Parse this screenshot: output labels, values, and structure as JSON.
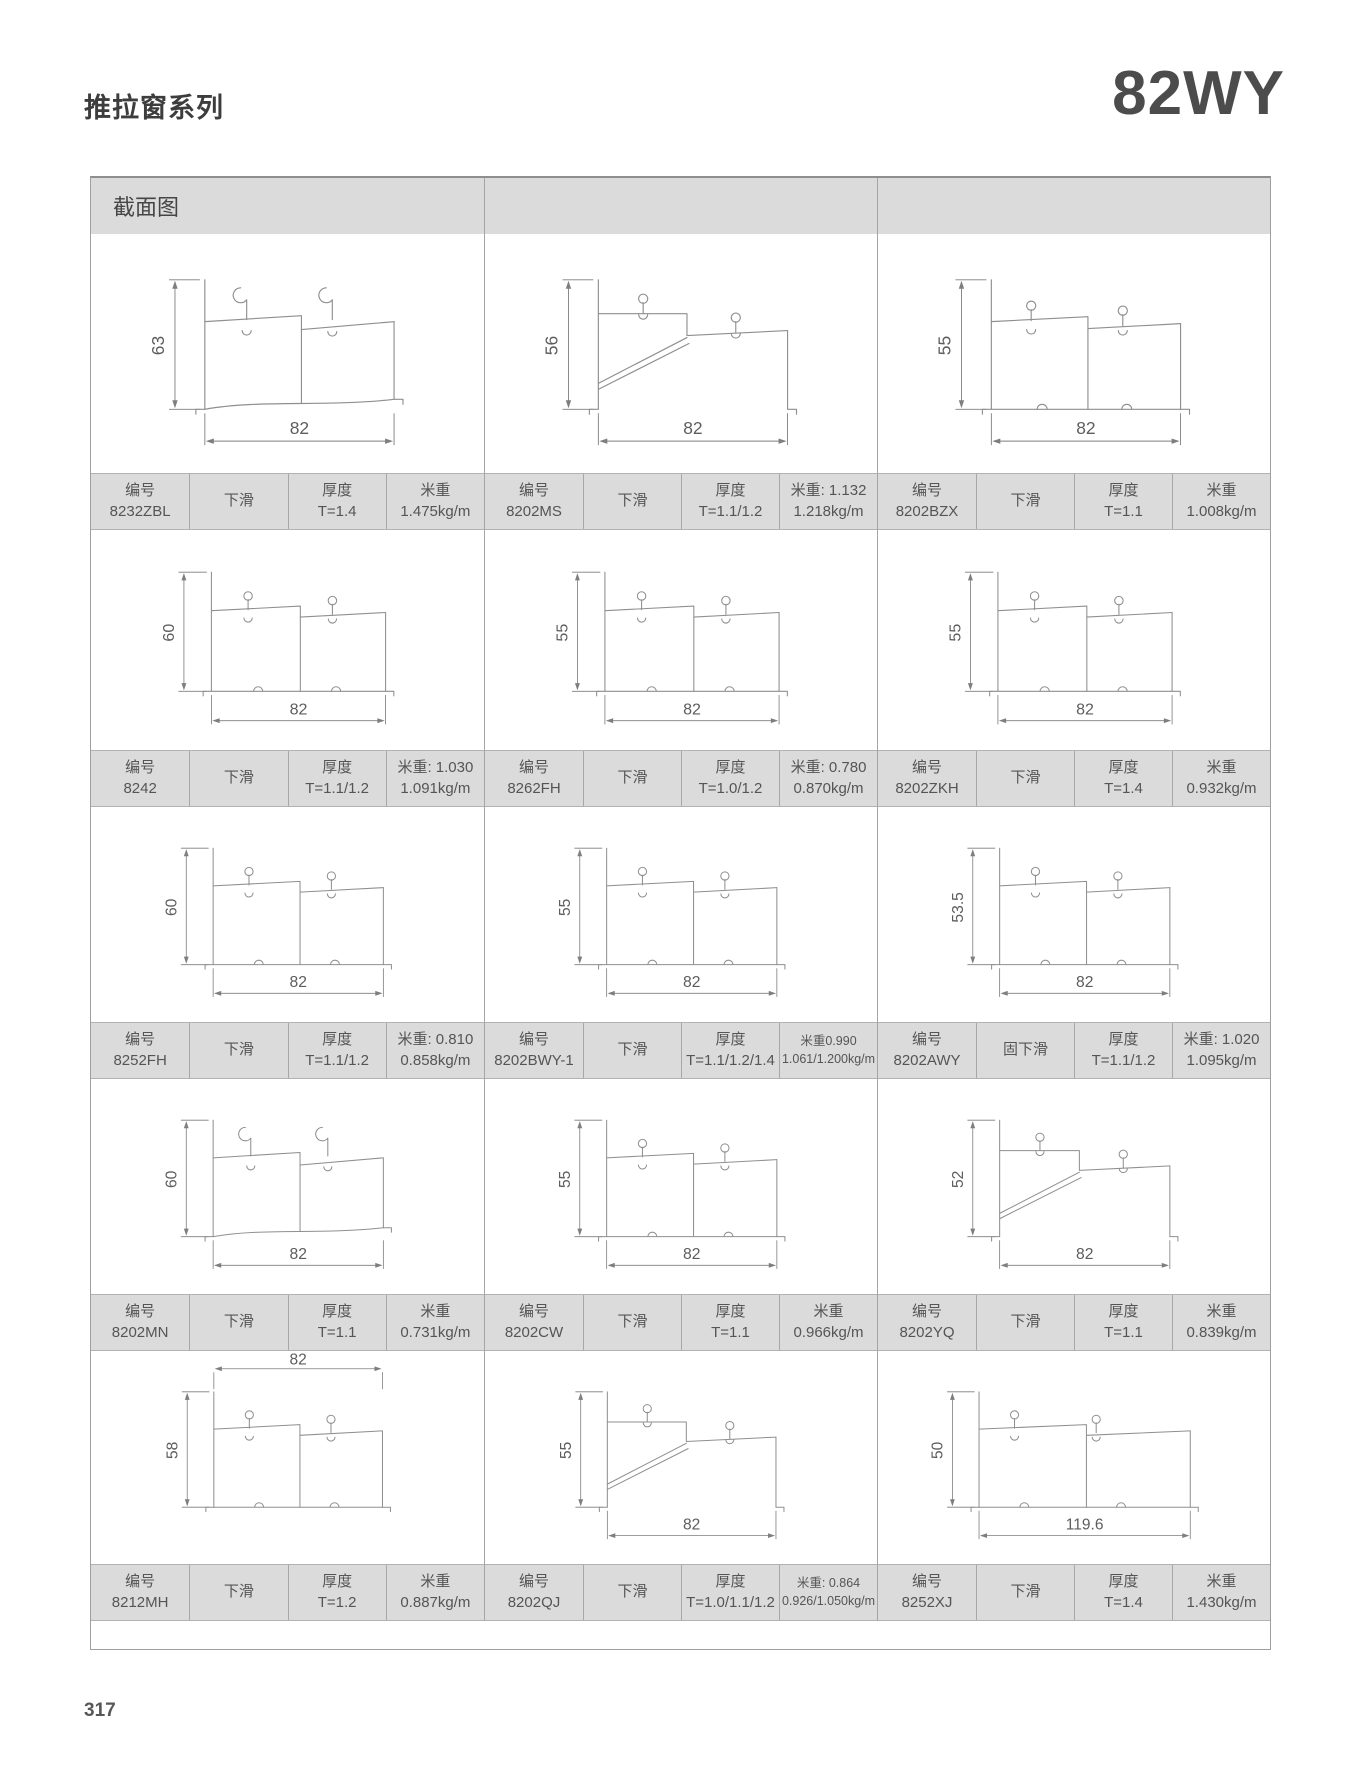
{
  "page": {
    "series_title": "推拉窗系列",
    "model": "82WY",
    "section_header": "截面图",
    "page_number": "317"
  },
  "cells": [
    {
      "code_label": "编号",
      "code": "8232ZBL",
      "type": "下滑",
      "thk_label": "厚度",
      "thk": "T=1.4",
      "wt1": "米重",
      "wt2": "1.475kg/m",
      "wt_small": false,
      "dwg": {
        "h": "63",
        "w": "82",
        "wpos": "bottom",
        "v": "hook"
      }
    },
    {
      "code_label": "编号",
      "code": "8202MS",
      "type": "下滑",
      "thk_label": "厚度",
      "thk": "T=1.1/1.2",
      "wt1": "米重: 1.132",
      "wt2": "1.218kg/m",
      "wt_small": false,
      "dwg": {
        "h": "56",
        "w": "82",
        "wpos": "bottom",
        "v": "slope"
      }
    },
    {
      "code_label": "编号",
      "code": "8202BZX",
      "type": "下滑",
      "thk_label": "厚度",
      "thk": "T=1.1",
      "wt1": "米重",
      "wt2": "1.008kg/m",
      "wt_small": false,
      "dwg": {
        "h": "55",
        "w": "82",
        "wpos": "bottom",
        "v": "step"
      }
    },
    {
      "code_label": "编号",
      "code": "8242",
      "type": "下滑",
      "thk_label": "厚度",
      "thk": "T=1.1/1.2",
      "wt1": "米重: 1.030",
      "wt2": "1.091kg/m",
      "wt_small": false,
      "dwg": {
        "h": "60",
        "w": "82",
        "wpos": "bottom",
        "v": "step"
      }
    },
    {
      "code_label": "编号",
      "code": "8262FH",
      "type": "下滑",
      "thk_label": "厚度",
      "thk": "T=1.0/1.2",
      "wt1": "米重: 0.780",
      "wt2": "0.870kg/m",
      "wt_small": false,
      "dwg": {
        "h": "55",
        "w": "82",
        "wpos": "bottom",
        "v": "step"
      }
    },
    {
      "code_label": "编号",
      "code": "8202ZKH",
      "type": "下滑",
      "thk_label": "厚度",
      "thk": "T=1.4",
      "wt1": "米重",
      "wt2": "0.932kg/m",
      "wt_small": false,
      "dwg": {
        "h": "55",
        "w": "82",
        "wpos": "bottom",
        "v": "step"
      }
    },
    {
      "code_label": "编号",
      "code": "8252FH",
      "type": "下滑",
      "thk_label": "厚度",
      "thk": "T=1.1/1.2",
      "wt1": "米重: 0.810",
      "wt2": "0.858kg/m",
      "wt_small": false,
      "dwg": {
        "h": "60",
        "w": "82",
        "wpos": "bottom",
        "v": "step"
      }
    },
    {
      "code_label": "编号",
      "code": "8202BWY-1",
      "type": "下滑",
      "thk_label": "厚度",
      "thk": "T=1.1/1.2/1.4",
      "wt1": "米重0.990",
      "wt2": "1.061/1.200kg/m",
      "wt_small": true,
      "dwg": {
        "h": "55",
        "w": "82",
        "wpos": "bottom",
        "v": "step"
      }
    },
    {
      "code_label": "编号",
      "code": "8202AWY",
      "type": "固下滑",
      "thk_label": "厚度",
      "thk": "T=1.1/1.2",
      "wt1": "米重: 1.020",
      "wt2": "1.095kg/m",
      "wt_small": false,
      "dwg": {
        "h": "53.5",
        "w": "82",
        "wpos": "bottom",
        "v": "step"
      }
    },
    {
      "code_label": "编号",
      "code": "8202MN",
      "type": "下滑",
      "thk_label": "厚度",
      "thk": "T=1.1",
      "wt1": "米重",
      "wt2": "0.731kg/m",
      "wt_small": false,
      "dwg": {
        "h": "60",
        "w": "82",
        "wpos": "bottom",
        "v": "hook"
      }
    },
    {
      "code_label": "编号",
      "code": "8202CW",
      "type": "下滑",
      "thk_label": "厚度",
      "thk": "T=1.1",
      "wt1": "米重",
      "wt2": "0.966kg/m",
      "wt_small": false,
      "dwg": {
        "h": "55",
        "w": "82",
        "wpos": "bottom",
        "v": "step"
      }
    },
    {
      "code_label": "编号",
      "code": "8202YQ",
      "type": "下滑",
      "thk_label": "厚度",
      "thk": "T=1.1",
      "wt1": "米重",
      "wt2": "0.839kg/m",
      "wt_small": false,
      "dwg": {
        "h": "52",
        "w": "82",
        "wpos": "bottom",
        "v": "slope"
      }
    },
    {
      "code_label": "编号",
      "code": "8212MH",
      "type": "下滑",
      "thk_label": "厚度",
      "thk": "T=1.2",
      "wt1": "米重",
      "wt2": "0.887kg/m",
      "wt_small": false,
      "dwg": {
        "h": "58",
        "w": "82",
        "wpos": "top",
        "v": "step"
      }
    },
    {
      "code_label": "编号",
      "code": "8202QJ",
      "type": "下滑",
      "thk_label": "厚度",
      "thk": "T=1.0/1.1/1.2",
      "wt1": "米重: 0.864",
      "wt2": "0.926/1.050kg/m",
      "wt_small": true,
      "dwg": {
        "h": "55",
        "w": "82",
        "wpos": "bottom",
        "v": "slope"
      }
    },
    {
      "code_label": "编号",
      "code": "8252XJ",
      "type": "下滑",
      "thk_label": "厚度",
      "thk": "T=1.4",
      "wt1": "米重",
      "wt2": "1.430kg/m",
      "wt_small": false,
      "dwg": {
        "h": "50",
        "w": "119.6",
        "wpos": "bottom",
        "v": "step"
      }
    }
  ]
}
